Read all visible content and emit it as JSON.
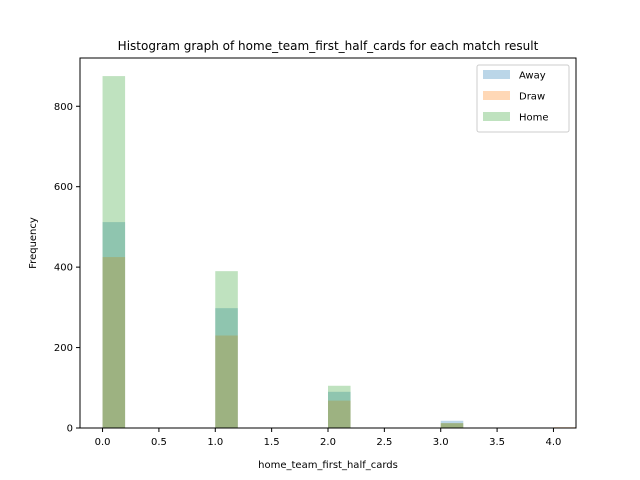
{
  "chart_data": {
    "type": "bar",
    "title": "Histogram graph of home_team_first_half_cards for each match result",
    "xlabel": "home_team_first_half_cards",
    "ylabel": "Frequency",
    "xlim": [
      -0.2,
      4.2
    ],
    "ylim": [
      0,
      920
    ],
    "xticks": [
      0.0,
      0.5,
      1.0,
      1.5,
      2.0,
      2.5,
      3.0,
      3.5,
      4.0
    ],
    "xtick_labels": [
      "0.0",
      "0.5",
      "1.0",
      "1.5",
      "2.0",
      "2.5",
      "3.0",
      "3.5",
      "4.0"
    ],
    "yticks": [
      0,
      200,
      400,
      600,
      800
    ],
    "ytick_labels": [
      "0",
      "200",
      "400",
      "600",
      "800"
    ],
    "bin_width": 0.2,
    "bins": [
      0,
      1,
      2,
      3,
      4
    ],
    "grid": false,
    "legend_position": "top-right",
    "series": [
      {
        "name": "Away",
        "color": "#1f77b4",
        "alpha": 0.3,
        "values": [
          512,
          298,
          90,
          18,
          1
        ]
      },
      {
        "name": "Draw",
        "color": "#ff7f0e",
        "alpha": 0.3,
        "values": [
          425,
          230,
          68,
          12,
          2
        ]
      },
      {
        "name": "Home",
        "color": "#2ca02c",
        "alpha": 0.3,
        "values": [
          875,
          390,
          105,
          12,
          1
        ]
      }
    ]
  }
}
